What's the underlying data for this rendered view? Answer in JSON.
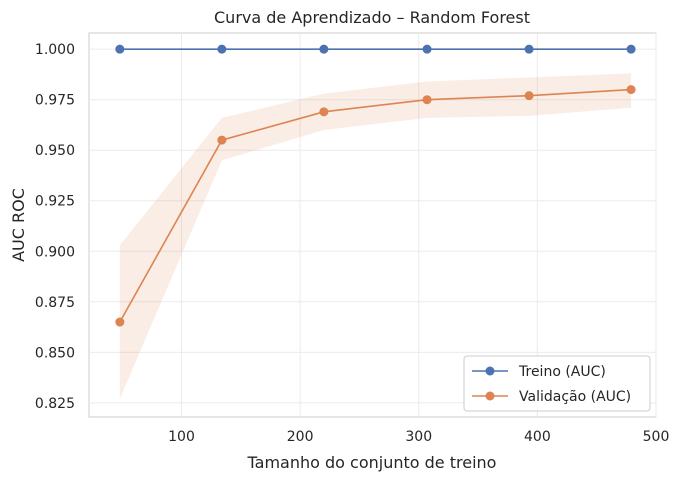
{
  "chart_data": {
    "type": "line",
    "title": "Curva de Aprendizado – Random Forest",
    "xlabel": "Tamanho do conjunto de treino",
    "ylabel": "AUC ROC",
    "xlim": [
      22,
      500
    ],
    "ylim": [
      0.818,
      1.008
    ],
    "xticks": [
      100,
      200,
      300,
      400,
      500
    ],
    "yticks": [
      0.825,
      0.85,
      0.875,
      0.9,
      0.925,
      0.95,
      0.975,
      1.0
    ],
    "ytick_labels": [
      "0.825",
      "0.850",
      "0.875",
      "0.900",
      "0.925",
      "0.950",
      "0.975",
      "1.000"
    ],
    "grid": true,
    "legend_position": "lower right",
    "x": [
      48,
      134,
      220,
      307,
      393,
      479
    ],
    "series": [
      {
        "name": "Treino (AUC)",
        "color": "#4c72b0",
        "values": [
          1.0,
          1.0,
          1.0,
          1.0,
          1.0,
          1.0
        ],
        "band_lower": [
          1.0,
          1.0,
          1.0,
          1.0,
          1.0,
          1.0
        ],
        "band_upper": [
          1.0,
          1.0,
          1.0,
          1.0,
          1.0,
          1.0
        ]
      },
      {
        "name": "Validação (AUC)",
        "color": "#dd8452",
        "values": [
          0.865,
          0.955,
          0.969,
          0.975,
          0.977,
          0.98
        ],
        "band_lower": [
          0.827,
          0.945,
          0.96,
          0.966,
          0.967,
          0.971
        ],
        "band_upper": [
          0.903,
          0.966,
          0.978,
          0.984,
          0.986,
          0.988
        ]
      }
    ]
  }
}
